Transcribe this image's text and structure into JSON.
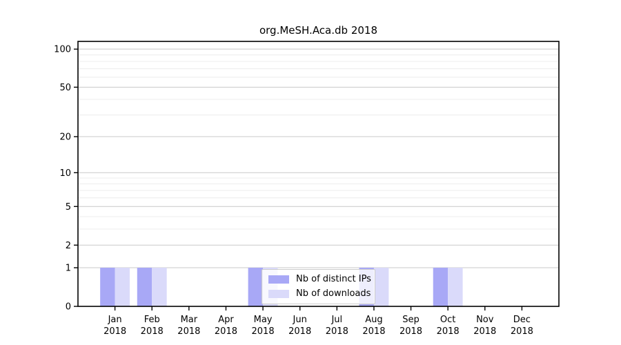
{
  "title": "org.MeSH.Aca.db 2018",
  "chart_data": {
    "type": "bar",
    "title": "org.MeSH.Aca.db 2018",
    "categories": [
      "Jan",
      "Feb",
      "Mar",
      "Apr",
      "May",
      "Jun",
      "Jul",
      "Aug",
      "Sep",
      "Oct",
      "Nov",
      "Dec"
    ],
    "category_year": "2018",
    "series": [
      {
        "name": "Nb of distinct IPs",
        "color": "#a8a8f6",
        "values": [
          1,
          1,
          0,
          0,
          1,
          0,
          0,
          1,
          0,
          1,
          0,
          0
        ]
      },
      {
        "name": "Nb of downloads",
        "color": "#dadafa",
        "values": [
          1,
          1,
          0,
          0,
          1,
          0,
          0,
          1,
          0,
          1,
          0,
          0
        ]
      }
    ],
    "xlabel": "",
    "ylabel": "",
    "yscale": "log1p",
    "ylim": [
      0,
      115
    ],
    "yticks": [
      0,
      1,
      2,
      5,
      10,
      20,
      50,
      100
    ],
    "yticks_minor": [
      3,
      4,
      6,
      7,
      8,
      9,
      30,
      40,
      60,
      70,
      80,
      90
    ],
    "grid": "horizontal",
    "legend_position": "lower center",
    "colors": {
      "grid_major": "#c8c8c8",
      "grid_minor": "#ececec",
      "axis": "#000000",
      "background": "#ffffff"
    }
  }
}
